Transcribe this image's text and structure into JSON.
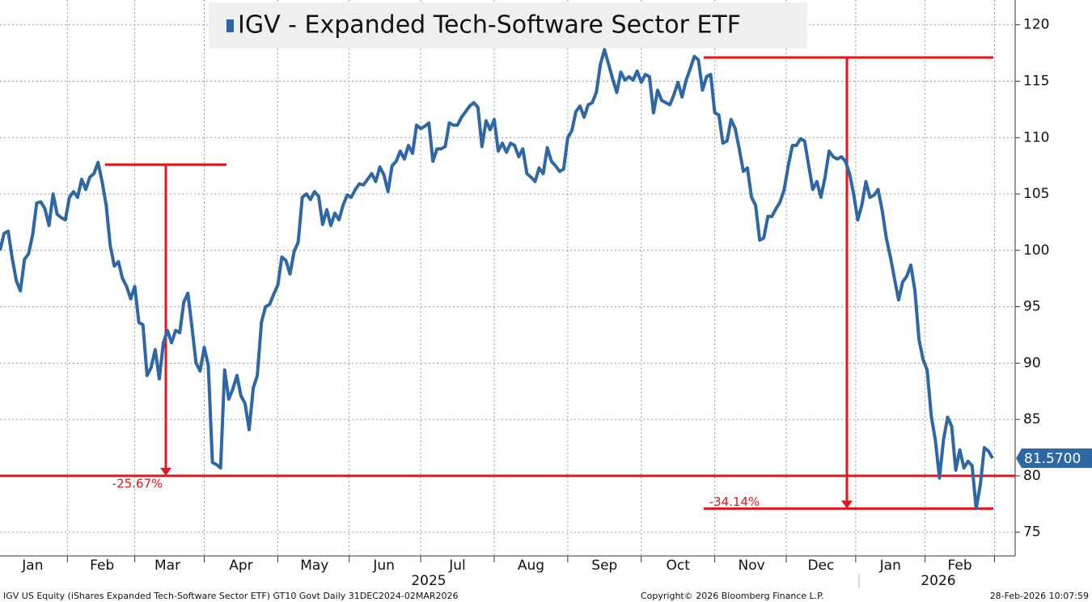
{
  "chart_data": {
    "type": "line",
    "series": [
      {
        "name": "IGV - Expanded Tech-Software Sector ETF",
        "color": "#2e67a6",
        "values": [
          100.0,
          101.5,
          101.7,
          99.3,
          97.3,
          96.4,
          99.2,
          99.7,
          101.4,
          104.2,
          104.3,
          103.7,
          102.2,
          105.0,
          103.2,
          102.9,
          102.7,
          104.7,
          105.2,
          104.7,
          106.3,
          105.4,
          106.5,
          106.8,
          107.8,
          106.1,
          104.0,
          100.4,
          98.6,
          99.0,
          97.5,
          96.8,
          95.7,
          96.8,
          93.6,
          93.4,
          88.9,
          89.6,
          91.2,
          88.6,
          91.8,
          92.9,
          91.8,
          92.9,
          92.7,
          95.4,
          96.2,
          93.2,
          90.0,
          89.3,
          91.4,
          89.8,
          81.2,
          81.0,
          80.7,
          89.4,
          86.8,
          87.7,
          88.9,
          87.1,
          86.4,
          84.1,
          87.8,
          88.9,
          93.6,
          95.0,
          95.2,
          96.1,
          96.9,
          99.4,
          99.1,
          97.9,
          99.9,
          100.7,
          104.7,
          105.0,
          104.5,
          105.2,
          104.8,
          102.3,
          103.6,
          102.2,
          103.3,
          102.7,
          104.0,
          104.9,
          104.7,
          105.4,
          105.9,
          105.8,
          106.3,
          106.8,
          106.1,
          107.4,
          106.7,
          105.2,
          107.5,
          107.9,
          108.8,
          108.1,
          109.3,
          108.6,
          111.1,
          110.8,
          111.0,
          111.3,
          107.9,
          109.0,
          109.0,
          109.2,
          111.3,
          111.1,
          111.1,
          111.8,
          112.3,
          112.8,
          113.1,
          112.7,
          109.2,
          111.5,
          110.7,
          111.6,
          108.8,
          109.5,
          108.7,
          109.5,
          109.3,
          108.3,
          109.0,
          106.8,
          106.5,
          106.1,
          107.3,
          106.8,
          109.1,
          107.9,
          107.5,
          107.0,
          107.2,
          110.0,
          110.6,
          112.3,
          112.8,
          111.8,
          112.9,
          113.1,
          114.0,
          116.5,
          117.8,
          116.5,
          115.2,
          114.0,
          115.8,
          115.1,
          115.4,
          115.1,
          115.9,
          114.9,
          115.6,
          115.4,
          112.2,
          114.2,
          113.3,
          113.1,
          112.9,
          113.8,
          114.9,
          113.6,
          115.1,
          116.1,
          117.2,
          116.9,
          114.2,
          115.4,
          115.6,
          112.2,
          112.0,
          109.5,
          109.7,
          111.6,
          110.8,
          109.0,
          107.0,
          107.3,
          104.7,
          104.0,
          100.9,
          101.1,
          103.0,
          103.0,
          103.7,
          104.3,
          105.4,
          107.5,
          109.3,
          109.3,
          109.9,
          109.7,
          107.5,
          105.4,
          106.1,
          104.7,
          106.5,
          108.8,
          108.3,
          108.1,
          108.3,
          107.9,
          106.8,
          105.0,
          102.7,
          104.0,
          106.1,
          104.7,
          104.9,
          105.4,
          103.5,
          101.1,
          99.4,
          97.5,
          95.6,
          97.2,
          97.7,
          98.7,
          96.4,
          92.1,
          90.3,
          89.4,
          85.3,
          83.2,
          79.8,
          83.2,
          85.2,
          84.4,
          80.5,
          82.3,
          80.7,
          81.3,
          80.9,
          77.1,
          79.2,
          82.5,
          82.2,
          81.57
        ]
      }
    ],
    "categories": [
      null,
      null,
      null,
      null,
      null,
      null,
      null,
      null,
      "Jan",
      null,
      null,
      null,
      null,
      null,
      null,
      null,
      null,
      null,
      null,
      null,
      null,
      null,
      null,
      null,
      null,
      "Feb",
      null,
      null,
      null,
      null,
      null,
      null,
      null,
      null,
      null,
      null,
      null,
      null,
      null,
      null,
      null,
      "Mar",
      null,
      null,
      null,
      null,
      null,
      null,
      null,
      null,
      null,
      null,
      null,
      null,
      null,
      null,
      null,
      null,
      null,
      "Apr",
      null,
      null,
      null,
      null,
      null,
      null,
      null,
      null,
      null,
      null,
      null,
      null,
      null,
      null,
      null,
      null,
      null,
      "May",
      null,
      null,
      null,
      null,
      null,
      null,
      null,
      null,
      null,
      null,
      null,
      null,
      null,
      null,
      null,
      null,
      "Jun",
      null,
      null,
      null,
      null,
      null,
      null,
      null,
      null,
      null,
      null,
      null,
      null,
      null,
      null,
      null,
      null,
      null,
      "Jul",
      null,
      null,
      null,
      null,
      null,
      null,
      null,
      null,
      null,
      null,
      null,
      null,
      null,
      null,
      null,
      null,
      null,
      "Aug",
      null,
      null,
      null,
      null,
      null,
      null,
      null,
      null,
      null,
      null,
      null,
      null,
      null,
      null,
      null,
      null,
      null,
      "Sep",
      null,
      null,
      null,
      null,
      null,
      null,
      null,
      null,
      null,
      null,
      null,
      null,
      null,
      null,
      null,
      null,
      null,
      "Oct",
      null,
      null,
      null,
      null,
      null,
      null,
      null,
      null,
      null,
      null,
      null,
      null,
      null,
      null,
      null,
      null,
      null,
      "Nov",
      null,
      null,
      null,
      null,
      null,
      null,
      null,
      null,
      null,
      null,
      null,
      null,
      null,
      null,
      null,
      null,
      "Dec",
      null,
      null,
      null,
      null,
      null,
      null,
      null,
      null,
      null,
      null,
      null,
      null,
      null,
      null,
      null,
      null,
      "Jan",
      null,
      null,
      null,
      null,
      null,
      null,
      null,
      null,
      null,
      null,
      null,
      null,
      null,
      null,
      null,
      null,
      "Feb",
      null,
      null,
      null,
      null,
      null,
      null,
      null,
      null
    ],
    "years": [
      "2025",
      "2026"
    ],
    "ylim": [
      72.9,
      122.2
    ],
    "yticks": [
      75,
      80,
      85,
      90,
      95,
      100,
      105,
      110,
      115,
      120
    ],
    "grid": true,
    "last_value_label": "81.5700",
    "annotations": [
      {
        "text": "-25.67%",
        "from": 107.6,
        "to": 80,
        "color": "#e8141b"
      },
      {
        "text": "-34.14%",
        "from": 117.1,
        "to": 77.1,
        "color": "#e8141b"
      }
    ],
    "footer": {
      "source": "IGV US Equity (iShares Expanded Tech-Software Sector ETF) GT10  Govt Daily 31DEC2024-02MAR2026",
      "copyright": "Copyright© 2026 Bloomberg Finance L.P.",
      "timestamp": "28-Feb-2026 10:07:59"
    }
  }
}
